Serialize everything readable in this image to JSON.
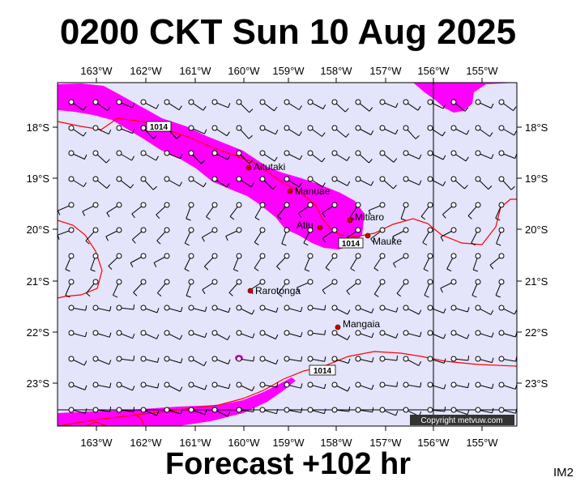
{
  "header": {
    "title": "0200 CKT Sun 10 Aug 2025"
  },
  "footer": {
    "forecast": "Forecast +102 hr",
    "product_code": "IM2",
    "copyright": "Copyright metvuw.com"
  },
  "map": {
    "background_color": "#e4e4fb",
    "rain_color": "#ff00ff",
    "isobar_color": "#ff0000",
    "lon_range": [
      -163.83,
      -154.5
    ],
    "lat_range": [
      -23.5,
      -17.33
    ],
    "lon_ticks": [
      "163°W",
      "162°W",
      "161°W",
      "160°W",
      "159°W",
      "158°W",
      "157°W",
      "156°W",
      "155°W"
    ],
    "lat_ticks": [
      "18°S",
      "19°S",
      "20°S",
      "21°S",
      "22°S",
      "23°S"
    ],
    "places": [
      {
        "name": "Aitutaki",
        "lon": -159.8,
        "lat": -18.85
      },
      {
        "name": "Manuae",
        "lon": -159.0,
        "lat": -19.27
      },
      {
        "name": "Mitiaro",
        "lon": -157.9,
        "lat": -19.88
      },
      {
        "name": "Atiu",
        "lon": -158.4,
        "lat": -19.99
      },
      {
        "name": "Mauke",
        "lon": -157.4,
        "lat": -20.15
      },
      {
        "name": "Rarotonga",
        "lon": -159.78,
        "lat": -21.23
      },
      {
        "name": "Mangaia",
        "lon": -158.0,
        "lat": -21.92
      }
    ],
    "isobar_labels": [
      "1014",
      "1014",
      "1014"
    ]
  }
}
